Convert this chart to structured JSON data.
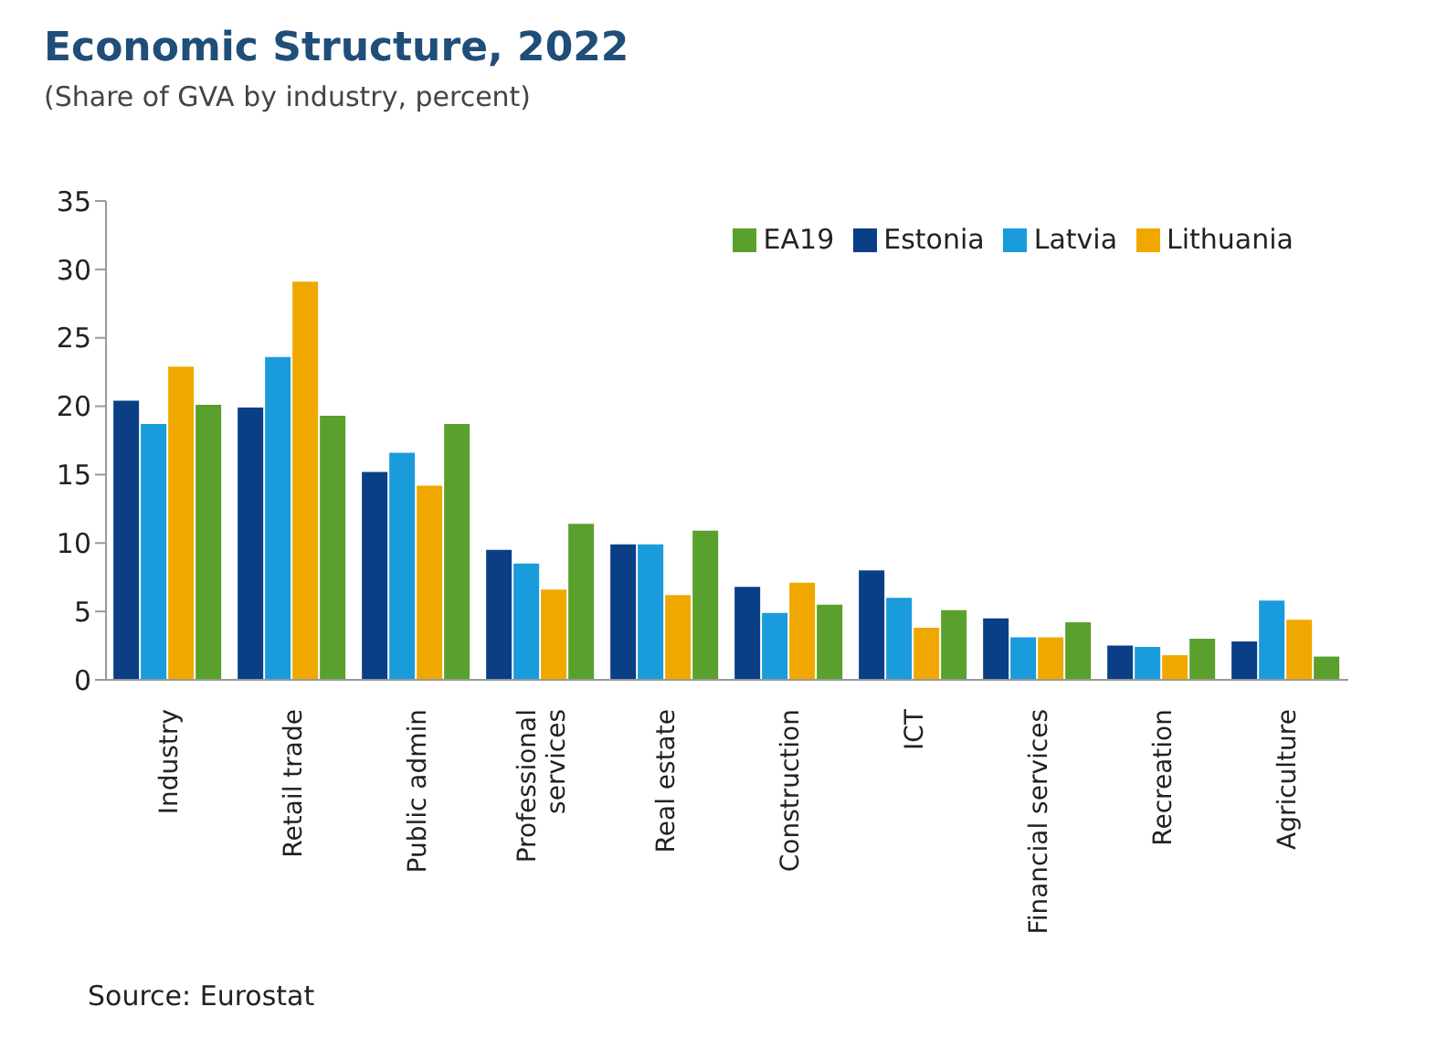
{
  "chart_data": {
    "type": "bar",
    "title": "Economic Structure, 2022",
    "subtitle": "(Share of GVA by industry, percent)",
    "categories": [
      "Industry",
      "Retail trade",
      "Public admin",
      "Professional\nservices",
      "Real estate",
      "Construction",
      "ICT",
      "Financial services",
      "Recreation",
      "Agriculture"
    ],
    "series": [
      {
        "name": "Estonia",
        "color": "#0a3f86",
        "values": [
          20.4,
          19.9,
          15.2,
          9.5,
          9.9,
          6.8,
          8.0,
          4.5,
          2.5,
          2.8
        ]
      },
      {
        "name": "Latvia",
        "color": "#1a9bdc",
        "values": [
          18.7,
          23.6,
          16.6,
          8.5,
          9.9,
          4.9,
          6.0,
          3.1,
          2.4,
          5.8
        ]
      },
      {
        "name": "Lithuania",
        "color": "#f0a800",
        "values": [
          22.9,
          29.1,
          14.2,
          6.6,
          6.2,
          7.1,
          3.8,
          3.1,
          1.8,
          4.4
        ]
      },
      {
        "name": "EA19",
        "color": "#5aa02c",
        "values": [
          20.1,
          19.3,
          18.7,
          11.4,
          10.9,
          5.5,
          5.1,
          4.2,
          3.0,
          1.7
        ]
      }
    ],
    "ylim": [
      0,
      35
    ],
    "yticks": [
      0,
      5,
      10,
      15,
      20,
      25,
      30,
      35
    ],
    "grid": false,
    "legend": "top right",
    "annotations": [
      "Source: Eurostat"
    ]
  }
}
